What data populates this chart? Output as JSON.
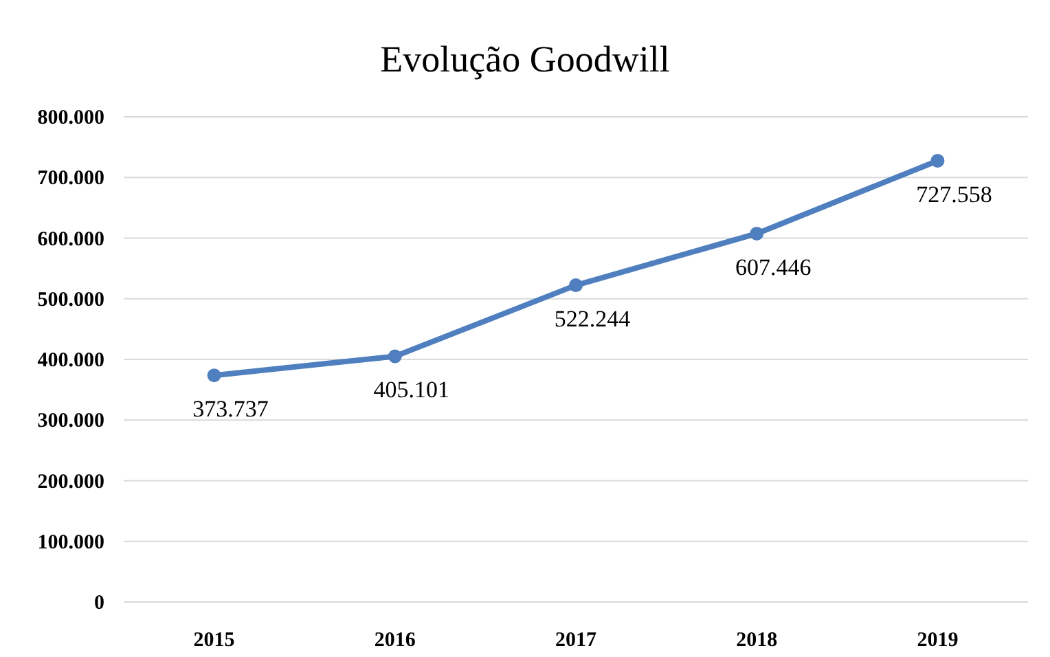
{
  "chart_data": {
    "type": "line",
    "title": "Evolução Goodwill",
    "categories": [
      "2015",
      "2016",
      "2017",
      "2018",
      "2019"
    ],
    "series": [
      {
        "color": "#4f7fbf",
        "values": [
          373737,
          405101,
          522244,
          607446,
          727558
        ],
        "value_labels": [
          "373.737",
          "405.101",
          "522.244",
          "607.446",
          "727.558"
        ]
      }
    ],
    "ylim": [
      0,
      800000
    ],
    "yticks": [
      {
        "value": 0,
        "label": "0"
      },
      {
        "value": 100000,
        "label": "100.000"
      },
      {
        "value": 200000,
        "label": "200.000"
      },
      {
        "value": 300000,
        "label": "300.000"
      },
      {
        "value": 400000,
        "label": "400.000"
      },
      {
        "value": 500000,
        "label": "500.000"
      },
      {
        "value": 600000,
        "label": "600.000"
      },
      {
        "value": 700000,
        "label": "700.000"
      },
      {
        "value": 800000,
        "label": "800.000"
      }
    ],
    "grid": "y",
    "marker": "circle",
    "line_style": "solid"
  }
}
